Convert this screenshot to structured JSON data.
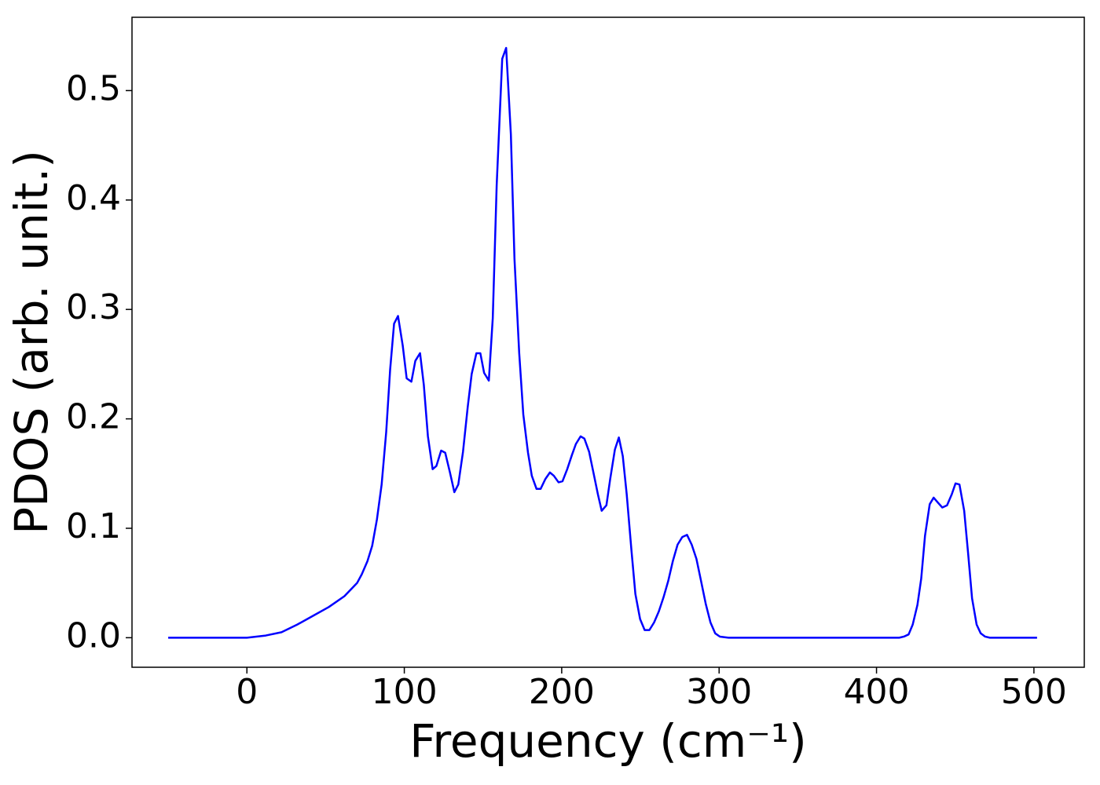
{
  "chart_data": {
    "type": "line",
    "xlabel": "Frequency (cm⁻¹)",
    "ylabel": "PDOS (arb. unit.)",
    "xlim": [
      -73,
      532
    ],
    "ylim": [
      -0.027,
      0.567
    ],
    "xticks": [
      0,
      100,
      200,
      300,
      400,
      500
    ],
    "yticks": [
      {
        "value": 0,
        "label": "0.0"
      },
      0.1,
      0.2,
      0.3,
      0.4,
      0.5
    ],
    "series": [
      {
        "color": "#0000ff",
        "x": [
          -50,
          0,
          12,
          22,
          32,
          42,
          52,
          62,
          70,
          73,
          76.6,
          79.6,
          82.6,
          85.6,
          88.5,
          91,
          93.5,
          96,
          99,
          101.5,
          104.5,
          107,
          110,
          112.4,
          115,
          118,
          120.4,
          123.4,
          126,
          129,
          131.8,
          134.3,
          137.3,
          140.3,
          142.8,
          145.8,
          148.3,
          150.7,
          153.7,
          156.2,
          158.7,
          162.2,
          164.7,
          167.7,
          170,
          173,
          175.6,
          178.6,
          181,
          184,
          186.6,
          189.6,
          192.5,
          195,
          198,
          200.5,
          203.5,
          206.5,
          209,
          212,
          214.4,
          217.4,
          220,
          223,
          225.4,
          228.4,
          230.8,
          233.8,
          236.3,
          238.8,
          241.3,
          244.3,
          246.8,
          249.8,
          252.7,
          255.7,
          258.7,
          261.7,
          264.7,
          267.7,
          270.6,
          273.6,
          276.6,
          279.6,
          282.6,
          285.6,
          288.5,
          291.5,
          294.5,
          297.5,
          300.5,
          306,
          414.4,
          417.4,
          420.4,
          423,
          426,
          428.4,
          430.8,
          433.8,
          436.3,
          439.3,
          441.8,
          444.8,
          447.8,
          450.2,
          452.7,
          455.7,
          458.2,
          460.7,
          463.6,
          466.2,
          469,
          472,
          502
        ],
        "values": [
          0,
          0,
          0.002,
          0.005,
          0.012,
          0.02,
          0.028,
          0.038,
          0.05,
          0.058,
          0.07,
          0.084,
          0.108,
          0.14,
          0.188,
          0.245,
          0.287,
          0.294,
          0.267,
          0.237,
          0.234,
          0.253,
          0.26,
          0.231,
          0.184,
          0.154,
          0.157,
          0.171,
          0.169,
          0.151,
          0.133,
          0.14,
          0.17,
          0.211,
          0.241,
          0.26,
          0.26,
          0.242,
          0.235,
          0.292,
          0.414,
          0.529,
          0.539,
          0.46,
          0.346,
          0.26,
          0.204,
          0.169,
          0.148,
          0.136,
          0.136,
          0.145,
          0.151,
          0.148,
          0.142,
          0.143,
          0.154,
          0.167,
          0.177,
          0.184,
          0.182,
          0.17,
          0.152,
          0.131,
          0.116,
          0.121,
          0.145,
          0.172,
          0.183,
          0.166,
          0.131,
          0.08,
          0.04,
          0.017,
          0.007,
          0.007,
          0.014,
          0.024,
          0.037,
          0.052,
          0.07,
          0.085,
          0.092,
          0.094,
          0.085,
          0.072,
          0.052,
          0.031,
          0.014,
          0.004,
          0.001,
          0,
          0,
          0.001,
          0.003,
          0.012,
          0.03,
          0.054,
          0.093,
          0.122,
          0.128,
          0.123,
          0.119,
          0.121,
          0.131,
          0.141,
          0.14,
          0.116,
          0.077,
          0.036,
          0.012,
          0.004,
          0.001,
          0,
          0
        ]
      }
    ]
  }
}
